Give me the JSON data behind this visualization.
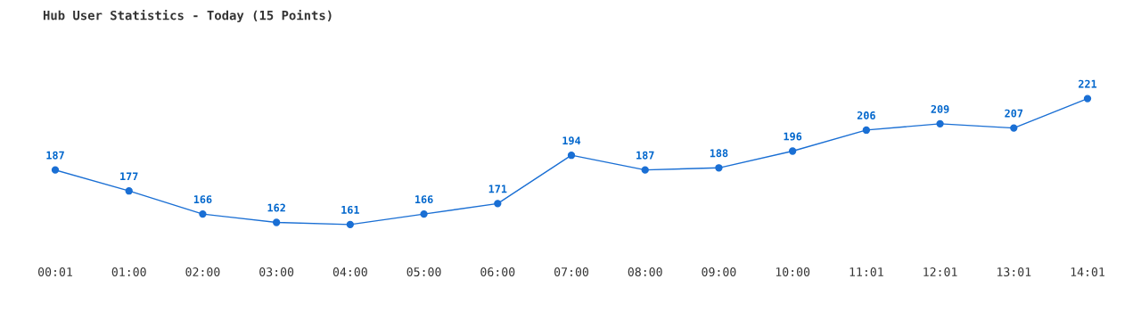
{
  "chart_data": {
    "type": "line",
    "title": "Hub User Statistics - Today (15 Points)",
    "categories": [
      "00:01",
      "01:00",
      "02:00",
      "03:00",
      "04:00",
      "05:00",
      "06:00",
      "07:00",
      "08:00",
      "09:00",
      "10:00",
      "11:01",
      "12:01",
      "13:01",
      "14:01"
    ],
    "series": [
      {
        "color": "#1a6fd4",
        "values": [
          187,
          177,
          166,
          162,
          161,
          166,
          171,
          194,
          187,
          188,
          196,
          206,
          209,
          207,
          221
        ]
      }
    ],
    "data_labels": true,
    "marker": "circle",
    "line_style": "solid",
    "grid": false,
    "legend": false,
    "tick_labels": "x"
  }
}
